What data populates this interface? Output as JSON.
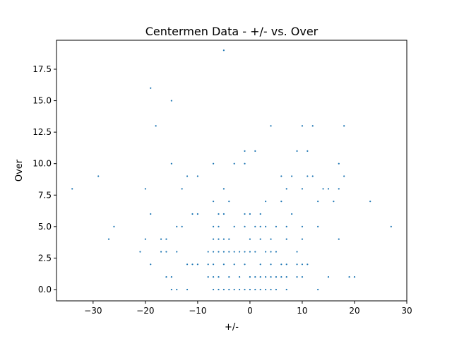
{
  "chart_data": {
    "type": "scatter",
    "title": "Centermen Data - +/- vs. Over",
    "xlabel": "+/-",
    "ylabel": "Over",
    "xlim": [
      -37,
      30
    ],
    "ylim": [
      -0.9,
      19.8
    ],
    "xticks": [
      -30,
      -20,
      -10,
      0,
      10,
      20,
      30
    ],
    "xtick_labels": [
      "−30",
      "−20",
      "−10",
      "0",
      "10",
      "20",
      "30"
    ],
    "yticks": [
      0.0,
      2.5,
      5.0,
      7.5,
      10.0,
      12.5,
      15.0,
      17.5
    ],
    "ytick_labels": [
      "0.0",
      "2.5",
      "5.0",
      "7.5",
      "10.0",
      "12.5",
      "15.0",
      "17.5"
    ],
    "grid": false,
    "marker_color": "#1f77b4",
    "points": [
      [
        -5,
        19
      ],
      [
        -19,
        16
      ],
      [
        -15,
        15
      ],
      [
        -18,
        13
      ],
      [
        4,
        13
      ],
      [
        10,
        13
      ],
      [
        12,
        13
      ],
      [
        18,
        13
      ],
      [
        -1,
        11
      ],
      [
        1,
        11
      ],
      [
        9,
        11
      ],
      [
        11,
        11
      ],
      [
        -15,
        10
      ],
      [
        -7,
        10
      ],
      [
        -3,
        10
      ],
      [
        -1,
        10
      ],
      [
        17,
        10
      ],
      [
        -29,
        9
      ],
      [
        -12,
        9
      ],
      [
        -10,
        9
      ],
      [
        6,
        9
      ],
      [
        8,
        9
      ],
      [
        11,
        9
      ],
      [
        12,
        9
      ],
      [
        18,
        9
      ],
      [
        -34,
        8
      ],
      [
        -20,
        8
      ],
      [
        -13,
        8
      ],
      [
        -5,
        8
      ],
      [
        7,
        8
      ],
      [
        10,
        8
      ],
      [
        14,
        8
      ],
      [
        15,
        8
      ],
      [
        17,
        8
      ],
      [
        -7,
        7
      ],
      [
        -4,
        7
      ],
      [
        3,
        7
      ],
      [
        6,
        7
      ],
      [
        13,
        7
      ],
      [
        16,
        7
      ],
      [
        23,
        7
      ],
      [
        -19,
        6
      ],
      [
        -11,
        6
      ],
      [
        -10,
        6
      ],
      [
        -6,
        6
      ],
      [
        -5,
        6
      ],
      [
        -1,
        6
      ],
      [
        0,
        6
      ],
      [
        2,
        6
      ],
      [
        8,
        6
      ],
      [
        -26,
        5
      ],
      [
        -14,
        5
      ],
      [
        -13,
        5
      ],
      [
        -7,
        5
      ],
      [
        -6,
        5
      ],
      [
        -3,
        5
      ],
      [
        -1,
        5
      ],
      [
        1,
        5
      ],
      [
        2,
        5
      ],
      [
        3,
        5
      ],
      [
        5,
        5
      ],
      [
        7,
        5
      ],
      [
        10,
        5
      ],
      [
        13,
        5
      ],
      [
        27,
        5
      ],
      [
        -27,
        4
      ],
      [
        -20,
        4
      ],
      [
        -17,
        4
      ],
      [
        -16,
        4
      ],
      [
        -7,
        4
      ],
      [
        -6,
        4
      ],
      [
        -5,
        4
      ],
      [
        -4,
        4
      ],
      [
        0,
        4
      ],
      [
        2,
        4
      ],
      [
        4,
        4
      ],
      [
        7,
        4
      ],
      [
        10,
        4
      ],
      [
        17,
        4
      ],
      [
        -21,
        3
      ],
      [
        -17,
        3
      ],
      [
        -16,
        3
      ],
      [
        -14,
        3
      ],
      [
        -8,
        3
      ],
      [
        -7,
        3
      ],
      [
        -6,
        3
      ],
      [
        -5,
        3
      ],
      [
        -4,
        3
      ],
      [
        -3,
        3
      ],
      [
        -2,
        3
      ],
      [
        -1,
        3
      ],
      [
        0,
        3
      ],
      [
        1,
        3
      ],
      [
        3,
        3
      ],
      [
        4,
        3
      ],
      [
        5,
        3
      ],
      [
        9,
        3
      ],
      [
        -19,
        2
      ],
      [
        -12,
        2
      ],
      [
        -11,
        2
      ],
      [
        -10,
        2
      ],
      [
        -8,
        2
      ],
      [
        -7,
        2
      ],
      [
        -5,
        2
      ],
      [
        -3,
        2
      ],
      [
        -1,
        2
      ],
      [
        2,
        2
      ],
      [
        4,
        2
      ],
      [
        6,
        2
      ],
      [
        7,
        2
      ],
      [
        9,
        2
      ],
      [
        10,
        2
      ],
      [
        11,
        2
      ],
      [
        -16,
        1
      ],
      [
        -15,
        1
      ],
      [
        -8,
        1
      ],
      [
        -7,
        1
      ],
      [
        -6,
        1
      ],
      [
        -4,
        1
      ],
      [
        -2,
        1
      ],
      [
        0,
        1
      ],
      [
        1,
        1
      ],
      [
        2,
        1
      ],
      [
        3,
        1
      ],
      [
        4,
        1
      ],
      [
        5,
        1
      ],
      [
        6,
        1
      ],
      [
        7,
        1
      ],
      [
        9,
        1
      ],
      [
        10,
        1
      ],
      [
        15,
        1
      ],
      [
        19,
        1
      ],
      [
        20,
        1
      ],
      [
        -15,
        0
      ],
      [
        -14,
        0
      ],
      [
        -12,
        0
      ],
      [
        -7,
        0
      ],
      [
        -6,
        0
      ],
      [
        -5,
        0
      ],
      [
        -4,
        0
      ],
      [
        -3,
        0
      ],
      [
        -2,
        0
      ],
      [
        -1,
        0
      ],
      [
        0,
        0
      ],
      [
        1,
        0
      ],
      [
        2,
        0
      ],
      [
        3,
        0
      ],
      [
        4,
        0
      ],
      [
        5,
        0
      ],
      [
        7,
        0
      ],
      [
        13,
        0
      ]
    ]
  }
}
